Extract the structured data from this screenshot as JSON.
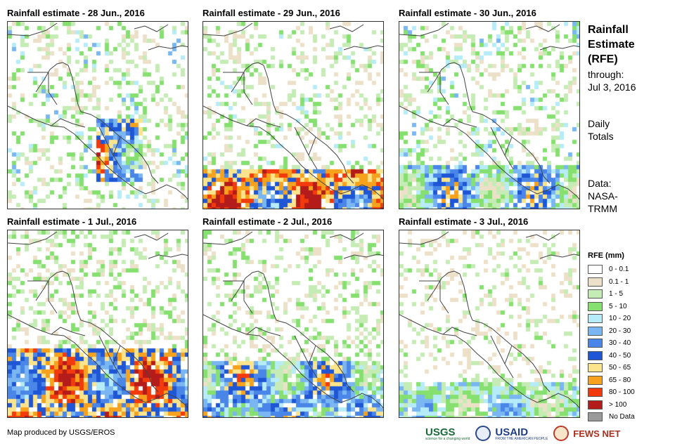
{
  "panels": [
    {
      "title": "Rainfall estimate - 28 Jun., 2016",
      "seed": 11,
      "wet": "ni"
    },
    {
      "title": "Rainfall estimate - 29 Jun., 2016",
      "seed": 23,
      "wet": "south"
    },
    {
      "title": "Rainfall estimate - 30 Jun., 2016",
      "seed": 37,
      "wet": "cr"
    },
    {
      "title": "Rainfall estimate - 1 Jul., 2016",
      "seed": 41,
      "wet": "pacific"
    },
    {
      "title": "Rainfall estimate - 2 Jul., 2016",
      "seed": 53,
      "wet": "mid"
    },
    {
      "title": "Rainfall estimate - 3 Jul., 2016",
      "seed": 67,
      "wet": "light"
    }
  ],
  "side": {
    "title_lines": [
      "Rainfall",
      "Estimate",
      "(RFE)"
    ],
    "through_label": "through:",
    "through_date": "Jul 3, 2016",
    "totals_lines": [
      "Daily",
      "Totals"
    ],
    "data_lines": [
      "Data:",
      "NASA-",
      "TRMM"
    ]
  },
  "legend": {
    "title": "RFE (mm)",
    "items": [
      {
        "label": "0 - 0.1",
        "color": "#ffffff"
      },
      {
        "label": "0.1 - 1",
        "color": "#ede0c8"
      },
      {
        "label": "1 - 5",
        "color": "#c5ecb4"
      },
      {
        "label": "5 - 10",
        "color": "#86e070"
      },
      {
        "label": "10 - 20",
        "color": "#b6ecf8"
      },
      {
        "label": "20 - 30",
        "color": "#7ab6f2"
      },
      {
        "label": "30 - 40",
        "color": "#4a86e8"
      },
      {
        "label": "40 - 50",
        "color": "#1e56d6"
      },
      {
        "label": "50 - 65",
        "color": "#fbe48c"
      },
      {
        "label": "65 - 80",
        "color": "#f7a21c"
      },
      {
        "label": "80 - 100",
        "color": "#f23a0c"
      },
      {
        "label": "> 100",
        "color": "#b41c1c"
      },
      {
        "label": "No Data",
        "color": "#9a9a9a"
      }
    ]
  },
  "credit": "Map produced by USGS/EROS",
  "logos": {
    "usgs": "USGS",
    "usgs_tag": "science for a changing world",
    "usaid": "USAID",
    "usaid_tag": "FROM THE AMERICAN PEOPLE",
    "fews": "FEWS NET"
  }
}
